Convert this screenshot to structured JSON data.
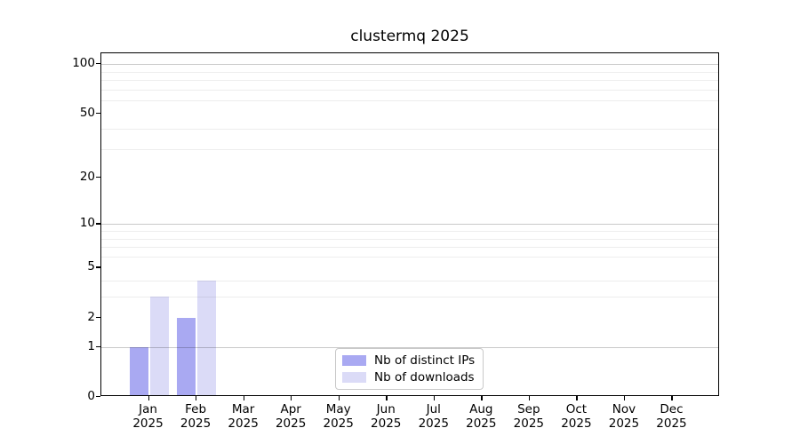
{
  "figure": {
    "background": "#ffffff"
  },
  "chart_data": {
    "type": "bar",
    "title": "clustermq 2025",
    "months": [
      "Jan",
      "Feb",
      "Mar",
      "Apr",
      "May",
      "Jun",
      "Jul",
      "Aug",
      "Sep",
      "Oct",
      "Nov",
      "Dec"
    ],
    "year_label": "2025",
    "series": [
      {
        "name": "Nb of distinct IPs",
        "color": "#a9a9f2",
        "values": [
          1,
          2,
          0,
          0,
          0,
          0,
          0,
          0,
          0,
          0,
          0,
          0
        ]
      },
      {
        "name": "Nb of downloads",
        "color": "#dbdbf7",
        "values": [
          3,
          4,
          0,
          0,
          0,
          0,
          0,
          0,
          0,
          0,
          0,
          0
        ]
      }
    ],
    "xlabel": "",
    "ylabel": "",
    "y_scale": "log10(1+y)",
    "ylim": [
      0,
      116
    ],
    "y_ticks": [
      0,
      1,
      2,
      5,
      10,
      20,
      50,
      100
    ],
    "y_major_grid_values": [
      1,
      10,
      100
    ],
    "y_minor_grid_values": [
      3,
      4,
      6,
      7,
      8,
      9,
      30,
      40,
      60,
      70,
      80,
      90
    ],
    "grid": "horizontal",
    "legend_position": "lower center"
  }
}
